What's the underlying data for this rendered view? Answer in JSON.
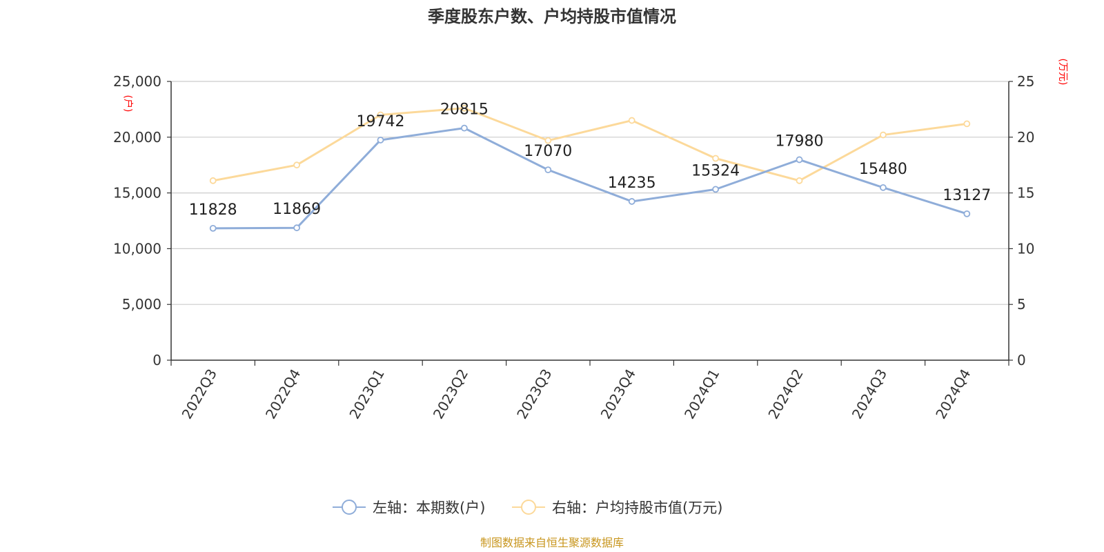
{
  "chart_data": {
    "type": "line",
    "title": "季度股东户数、户均持股市值情况",
    "categories": [
      "2022Q3",
      "2022Q4",
      "2023Q1",
      "2023Q2",
      "2023Q3",
      "2023Q4",
      "2024Q1",
      "2024Q2",
      "2024Q3",
      "2024Q4"
    ],
    "series": [
      {
        "name": "左轴：本期数(户)",
        "axis": "left",
        "color": "#8fadd9",
        "values": [
          11828,
          11869,
          19742,
          20815,
          17070,
          14235,
          15324,
          17980,
          15480,
          13127
        ],
        "labels": [
          "11828",
          "11869",
          "19742",
          "20815",
          "17070",
          "14235",
          "15324",
          "17980",
          "15480",
          "13127"
        ]
      },
      {
        "name": "右轴：户均持股市值(万元)",
        "axis": "right",
        "color": "#fcd99a",
        "values": [
          16.1,
          17.5,
          22.0,
          22.6,
          19.7,
          21.5,
          18.1,
          16.1,
          20.2,
          21.2
        ]
      }
    ],
    "left_axis": {
      "unit": "(户)",
      "ylim": [
        0,
        25000
      ],
      "ticks": [
        0,
        5000,
        10000,
        15000,
        20000,
        25000
      ],
      "tick_labels": [
        "0",
        "5,000",
        "10,000",
        "15,000",
        "20,000",
        "25,000"
      ]
    },
    "right_axis": {
      "unit": "(万元)",
      "ylim": [
        0,
        25
      ],
      "ticks": [
        0,
        5,
        10,
        15,
        20,
        25
      ],
      "tick_labels": [
        "0",
        "5",
        "10",
        "15",
        "20",
        "25"
      ]
    },
    "grid": true,
    "legend_position": "bottom"
  },
  "source": "制图数据来自恒生聚源数据库"
}
